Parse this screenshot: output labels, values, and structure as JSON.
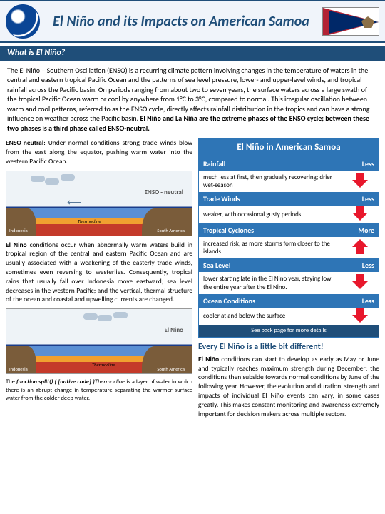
{
  "header": {
    "title": "El Niño and its Impacts on American Samoa"
  },
  "section1": {
    "header": "What is El Niño?",
    "intro_html": "The El Niño – Southern Oscillation (ENSO) is a recurring climate pattern involving changes in the temperature of waters in the central and eastern tropical Pacific Ocean and the patterns of sea level pressure, lower- and upper-level winds, and tropical rainfall across the Pacific basin. On periods ranging from about two to seven years, the surface waters across a large swath of the tropical Pacific Ocean warm or cool by anywhere from 1°C to 3°C, compared to normal. This irregular oscillation between warm and cool patterns, referred to as the ENSO cycle, directly affects rainfall distribution in the tropics and can have a strong influence on weather across the Pacific basin. "
  },
  "section1_bold_tail": "El Niño and La Niña are the extreme phases of the ENSO cycle; between these two phases is a third phase called ENSO-neutral.",
  "left": {
    "p1_lead": "ENSO-neutral",
    "p1_rest": ":  Under normal conditions strong trade winds blow from the east along the equator, pushing warm water into the western Pacific Ocean.",
    "diagram1_title": "ENSO - neutral",
    "p2_lead": "El Niño",
    "p2_rest": " conditions occur when abnormally warm waters build in tropical region of the central and eastern Pacific Ocean and are usually associated with a weakening of the easterly trade winds, sometimes even reversing to westerlies. Consequently, tropical rains that usually fall over Indonesia move eastward; sea level decreases in the western Pacific; and the vertical, thermal structure of the ocean and coastal and upwelling currents are changed.",
    "diagram2_title": "El Niño",
    "thermocline_note_lead": "The Thermocline",
    "thermocline_note_rest": " is a layer of water in which there is an abrupt change in temperature separating the warmer surface water from the colder deep water.",
    "land_left": "Indonesia",
    "land_right": "South America",
    "thermo_label": "Thermocline"
  },
  "right": {
    "header": "El Niño in American Samoa",
    "impacts": [
      {
        "cat": "Rainfall",
        "trend": "Less",
        "desc": "much less at first, then gradually recovering; drier wet-season",
        "dir": "down"
      },
      {
        "cat": "Trade Winds",
        "trend": "Less",
        "desc": "weaker, with occasional gusty periods",
        "dir": "down"
      },
      {
        "cat": "Tropical Cyclones",
        "trend": "More",
        "desc": "increased risk, as more storms form closer to the islands",
        "dir": "up"
      },
      {
        "cat": "Sea Level",
        "trend": "Less",
        "desc": "lower starting late in the El Nino year, staying low the entire year after the El Nino.",
        "dir": "down"
      },
      {
        "cat": "Ocean Conditions",
        "trend": "Less",
        "desc": "cooler at and below the surface",
        "dir": "down"
      }
    ],
    "footer": "See back page for more details",
    "closing_h": "Every El Niño is a little bit different!",
    "closing_lead": "El Niño",
    "closing_rest": " conditions can start to develop as early as May or June and typically reaches maximum strength during December; the conditions then subside towards normal conditions by June of the following year.  However, the evolution and duration, strength and impacts of individual El Niño events can vary, in some cases greatly. This makes constant monitoring and awareness extremely important for decision makers across multiple sectors."
  },
  "colors": {
    "primary": "#1f4e79",
    "secondary": "#2e75b6",
    "arrow": "#e8172c"
  }
}
